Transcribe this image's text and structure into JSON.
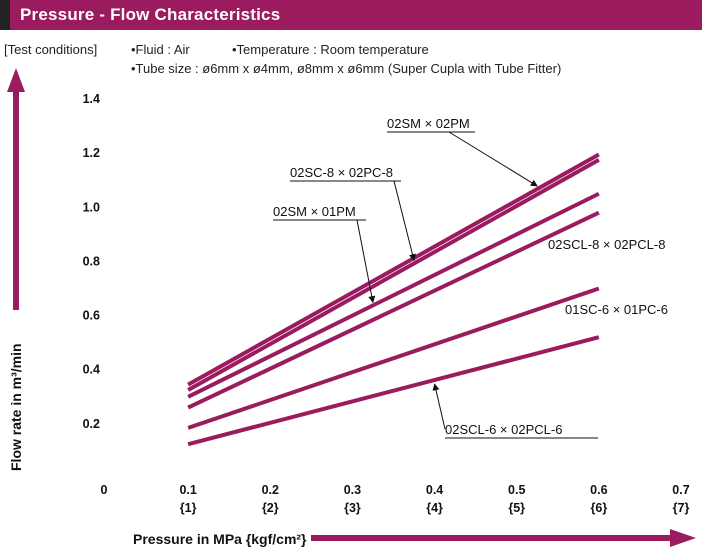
{
  "header": {
    "title": "Pressure - Flow Characteristics"
  },
  "test_conditions": {
    "label": "[Test conditions]",
    "fluid": "•Fluid : Air",
    "temperature": "•Temperature : Room temperature",
    "tube_size": "•Tube size : ø6mm x ø4mm, ø8mm x ø6mm (Super Cupla with Tube Fitter)"
  },
  "colors": {
    "accent": "#9b1b5f",
    "series": "#9b1b5f"
  },
  "chart_data": {
    "type": "line",
    "title": "",
    "xlabel": "Pressure in MPa {kgf/cm²}",
    "ylabel": "Flow rate in m³/min",
    "xlim": [
      0,
      0.7
    ],
    "ylim": [
      0,
      1.4
    ],
    "x_ticks": [
      {
        "value": 0,
        "label": "0",
        "sub": ""
      },
      {
        "value": 0.1,
        "label": "0.1",
        "sub": "{1}"
      },
      {
        "value": 0.2,
        "label": "0.2",
        "sub": "{2}"
      },
      {
        "value": 0.3,
        "label": "0.3",
        "sub": "{3}"
      },
      {
        "value": 0.4,
        "label": "0.4",
        "sub": "{4}"
      },
      {
        "value": 0.5,
        "label": "0.5",
        "sub": "{5}"
      },
      {
        "value": 0.6,
        "label": "0.6",
        "sub": "{6}"
      },
      {
        "value": 0.7,
        "label": "0.7",
        "sub": "{7}"
      }
    ],
    "y_ticks": [
      {
        "value": 0.2,
        "label": "0.2"
      },
      {
        "value": 0.4,
        "label": "0.4"
      },
      {
        "value": 0.6,
        "label": "0.6"
      },
      {
        "value": 0.8,
        "label": "0.8"
      },
      {
        "value": 1.0,
        "label": "1.0"
      },
      {
        "value": 1.2,
        "label": "1.2"
      },
      {
        "value": 1.4,
        "label": "1.4"
      }
    ],
    "grid": false,
    "series": [
      {
        "name": "02SM x 02PM",
        "x": [
          0.1,
          0.6
        ],
        "y": [
          0.345,
          1.195
        ]
      },
      {
        "name": "02SC-8 x 02PC-8",
        "x": [
          0.1,
          0.6
        ],
        "y": [
          0.325,
          1.175
        ]
      },
      {
        "name": "02SM x 01PM",
        "x": [
          0.1,
          0.6
        ],
        "y": [
          0.3,
          1.05
        ]
      },
      {
        "name": "02SCL-8 x 02PCL-8",
        "x": [
          0.1,
          0.6
        ],
        "y": [
          0.26,
          0.98
        ]
      },
      {
        "name": "01SC-6 x 01PC-6",
        "x": [
          0.1,
          0.6
        ],
        "y": [
          0.185,
          0.7
        ]
      },
      {
        "name": "02SCL-6 x 02PCL-6",
        "x": [
          0.1,
          0.6
        ],
        "y": [
          0.125,
          0.52
        ]
      }
    ],
    "annotations": [
      {
        "text": "02SM × 02PM",
        "points_to": "02SM x 02PM"
      },
      {
        "text": "02SC-8 × 02PC-8",
        "points_to": "02SC-8 x 02PC-8"
      },
      {
        "text": "02SM × 01PM",
        "points_to": "02SM x 01PM"
      },
      {
        "text": "02SCL-8 × 02PCL-8",
        "points_to": "02SCL-8 x 02PCL-8"
      },
      {
        "text": "01SC-6 × 01PC-6",
        "points_to": "01SC-6 x 01PC-6"
      },
      {
        "text": "02SCL-6 × 02PCL-6",
        "points_to": "02SCL-6 x 02PCL-6"
      }
    ]
  }
}
